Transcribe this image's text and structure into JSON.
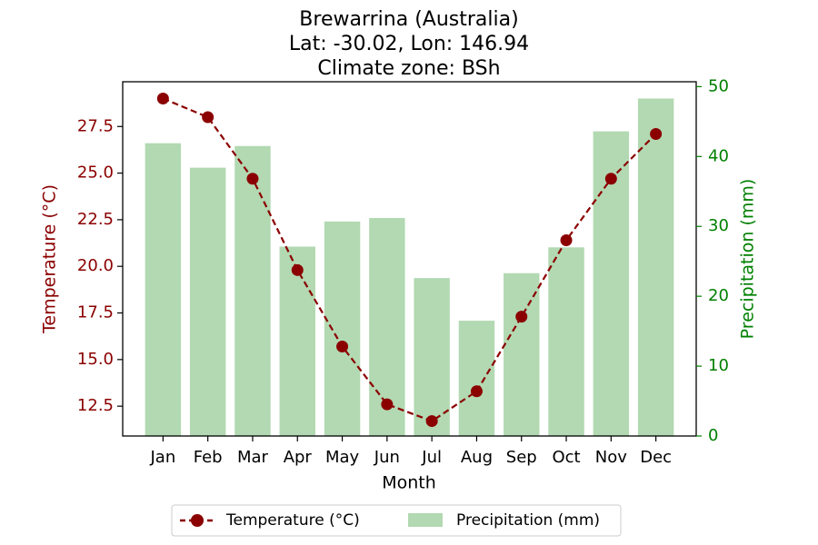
{
  "chart_data": {
    "type": "bar+line",
    "title_lines": [
      "Brewarrina (Australia)",
      "Lat: -30.02, Lon: 146.94",
      "Climate zone: BSh"
    ],
    "xlabel": "Month",
    "ylabel_left": "Temperature (°C)",
    "ylabel_right": "Precipitation (mm)",
    "categories": [
      "Jan",
      "Feb",
      "Mar",
      "Apr",
      "May",
      "Jun",
      "Jul",
      "Aug",
      "Sep",
      "Oct",
      "Nov",
      "Dec"
    ],
    "temperature": {
      "name": "Temperature (°C)",
      "values": [
        29.0,
        28.0,
        24.7,
        19.8,
        15.7,
        12.6,
        11.7,
        13.3,
        17.3,
        21.4,
        24.7,
        27.1
      ],
      "color": "#8b0000",
      "ylim": [
        10.9,
        29.9
      ],
      "ticks": [
        12.5,
        15.0,
        17.5,
        20.0,
        22.5,
        25.0,
        27.5
      ],
      "tick_labels": [
        "12.5",
        "15.0",
        "17.5",
        "20.0",
        "22.5",
        "25.0",
        "27.5"
      ]
    },
    "precipitation": {
      "name": "Precipitation (mm)",
      "values": [
        41.9,
        38.4,
        41.5,
        27.1,
        30.7,
        31.2,
        22.6,
        16.5,
        23.3,
        27.0,
        43.6,
        48.3
      ],
      "color": "#b2d9b2",
      "ylim": [
        0,
        50.7
      ],
      "ticks": [
        0,
        10,
        20,
        30,
        40,
        50
      ],
      "tick_labels": [
        "0",
        "10",
        "20",
        "30",
        "40",
        "50"
      ]
    },
    "left_axis_color": "#8b0000",
    "right_axis_color": "#008000",
    "legend_position": "bottom-center",
    "grid": false
  }
}
